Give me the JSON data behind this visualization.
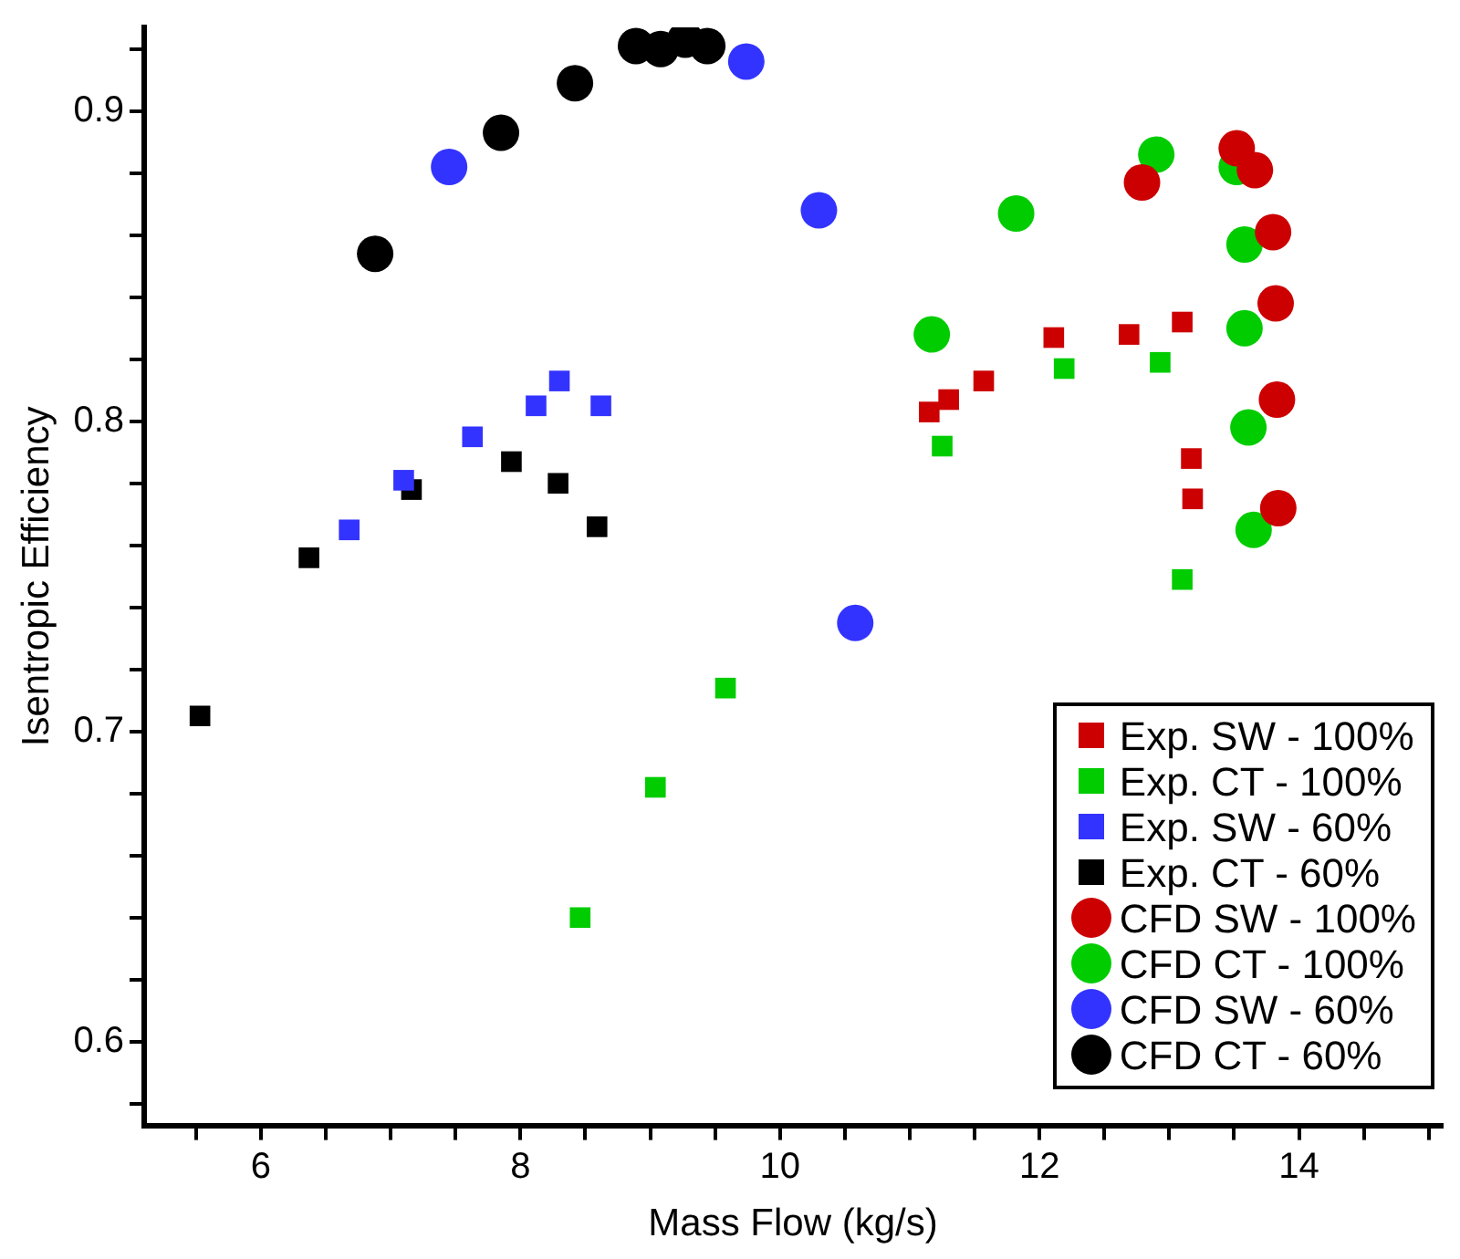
{
  "chart_data": {
    "type": "scatter",
    "xlabel": "Mass Flow (kg/s)",
    "ylabel": "Isentropic Efficiency",
    "xlim": [
      5.1,
      15.1
    ],
    "ylim": [
      0.573,
      0.927
    ],
    "xticks": [
      {
        "value": 5.5,
        "label": null
      },
      6,
      {
        "value": 6.5,
        "label": null
      },
      {
        "value": 7,
        "label": null
      },
      {
        "value": 7.5,
        "label": null
      },
      8,
      {
        "value": 8.5,
        "label": null
      },
      {
        "value": 9,
        "label": null
      },
      {
        "value": 9.5,
        "label": null
      },
      10,
      {
        "value": 10.5,
        "label": null
      },
      {
        "value": 11,
        "label": null
      },
      {
        "value": 11.5,
        "label": null
      },
      12,
      {
        "value": 12.5,
        "label": null
      },
      {
        "value": 13,
        "label": null
      },
      {
        "value": 13.5,
        "label": null
      },
      14,
      {
        "value": 14.5,
        "label": null
      },
      {
        "value": 15,
        "label": null
      }
    ],
    "yticks": [
      {
        "value": 0.58,
        "label": null
      },
      0.6,
      {
        "value": 0.62,
        "label": null
      },
      {
        "value": 0.64,
        "label": null
      },
      {
        "value": 0.66,
        "label": null
      },
      {
        "value": 0.68,
        "label": null
      },
      0.7,
      {
        "value": 0.72,
        "label": null
      },
      {
        "value": 0.74,
        "label": null
      },
      {
        "value": 0.76,
        "label": null
      },
      {
        "value": 0.78,
        "label": null
      },
      0.8,
      {
        "value": 0.82,
        "label": null
      },
      {
        "value": 0.84,
        "label": null
      },
      {
        "value": 0.86,
        "label": null
      },
      {
        "value": 0.88,
        "label": null
      },
      0.9,
      {
        "value": 0.92,
        "label": null
      }
    ],
    "grid": false,
    "legend": "bottom right",
    "series": [
      {
        "name": "Exp. SW - 100%",
        "color": "#cc0000",
        "marker": "square",
        "x": [
          11.15,
          11.3,
          11.57,
          12.11,
          12.69,
          13.1,
          13.17,
          13.18
        ],
        "values": [
          0.803,
          0.807,
          0.813,
          0.827,
          0.828,
          0.832,
          0.788,
          0.775
        ]
      },
      {
        "name": "Exp. CT - 100%",
        "color": "#00cc00",
        "marker": "square",
        "x": [
          8.46,
          9.04,
          9.58,
          11.25,
          12.19,
          12.93,
          13.1
        ],
        "values": [
          0.64,
          0.682,
          0.714,
          0.792,
          0.817,
          0.819,
          0.749
        ]
      },
      {
        "name": "Exp. SW - 60%",
        "color": "#3333ff",
        "marker": "square",
        "x": [
          6.68,
          7.1,
          7.63,
          8.12,
          8.3,
          8.62
        ],
        "values": [
          0.765,
          0.781,
          0.795,
          0.805,
          0.813,
          0.805
        ]
      },
      {
        "name": "Exp. CT - 60%",
        "color": "#000000",
        "marker": "square",
        "x": [
          5.53,
          6.37,
          7.16,
          7.93,
          8.29,
          8.59
        ],
        "values": [
          0.705,
          0.756,
          0.778,
          0.787,
          0.78,
          0.766
        ]
      },
      {
        "name": "CFD SW - 100%",
        "color": "#cc0000",
        "marker": "circle",
        "x": [
          12.79,
          13.52,
          13.66,
          13.8,
          13.82,
          13.83,
          13.84
        ],
        "values": [
          0.877,
          0.888,
          0.881,
          0.861,
          0.838,
          0.807,
          0.772
        ]
      },
      {
        "name": "CFD CT - 100%",
        "color": "#00cc00",
        "marker": "circle",
        "x": [
          11.17,
          11.82,
          12.9,
          13.52,
          13.58,
          13.58,
          13.61,
          13.65
        ],
        "values": [
          0.828,
          0.867,
          0.886,
          0.882,
          0.857,
          0.83,
          0.798,
          0.765
        ]
      },
      {
        "name": "CFD SW - 60%",
        "color": "#3333ff",
        "marker": "circle",
        "x": [
          7.45,
          9.74,
          10.3,
          10.58
        ],
        "values": [
          0.882,
          0.916,
          0.868,
          0.735
        ]
      },
      {
        "name": "CFD CT - 60%",
        "color": "#000000",
        "marker": "circle",
        "x": [
          6.88,
          7.85,
          8.42,
          8.89,
          9.08,
          9.27,
          9.44
        ],
        "values": [
          0.854,
          0.893,
          0.909,
          0.921,
          0.92,
          0.923,
          0.921
        ]
      }
    ]
  }
}
